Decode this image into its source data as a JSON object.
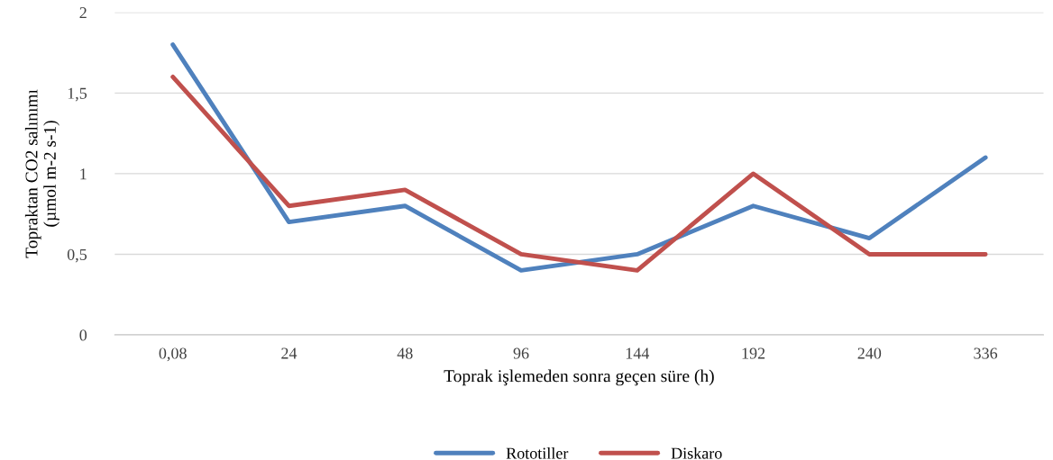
{
  "chart_data": {
    "type": "line",
    "xlabel": "Toprak işlemeden sonra geçen süre (h)",
    "ylabel": "Topraktan CO2 salınımı\n(µmol m-2 s-1)",
    "categories": [
      "0,08",
      "24",
      "48",
      "96",
      "144",
      "192",
      "240",
      "336"
    ],
    "series": [
      {
        "name": "Rototiller",
        "color": "#4f81bd",
        "values": [
          1.8,
          0.7,
          0.8,
          0.4,
          0.5,
          0.8,
          0.6,
          1.1
        ]
      },
      {
        "name": "Diskaro",
        "color": "#c0504d",
        "values": [
          1.6,
          0.8,
          0.9,
          0.5,
          0.4,
          1.0,
          0.5,
          0.5
        ]
      }
    ],
    "ylim": [
      0,
      2
    ],
    "yticks": [
      0,
      {
        "value": 0.5,
        "label": "0,5"
      },
      1,
      {
        "value": 1.5,
        "label": "1,5"
      },
      2
    ],
    "grid": "y",
    "legend": "bottom",
    "marker": "none",
    "line_style": "solid"
  }
}
